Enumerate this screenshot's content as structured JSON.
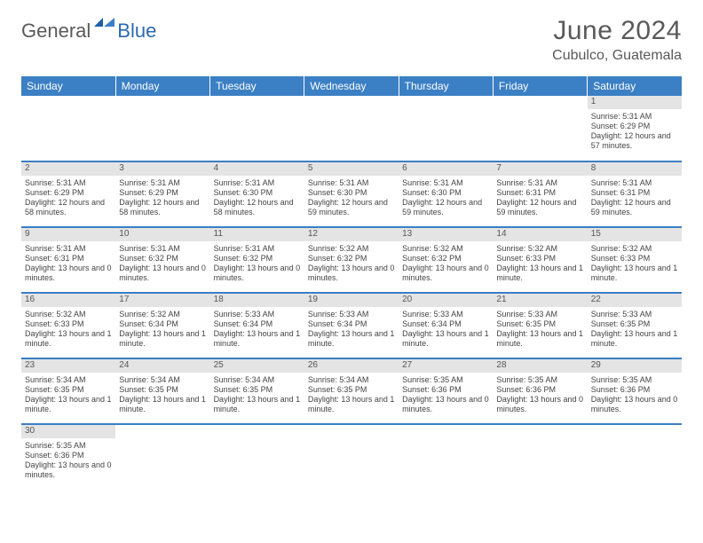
{
  "logo": {
    "text1": "General",
    "text2": "Blue"
  },
  "title": "June 2024",
  "location": "Cubulco, Guatemala",
  "colors": {
    "header_bg": "#3b7fc4",
    "header_text": "#ffffff",
    "daynum_bg": "#e4e4e4",
    "border": "#3b7fc4",
    "title_color": "#595959",
    "body_text": "#444444"
  },
  "weekdays": [
    "Sunday",
    "Monday",
    "Tuesday",
    "Wednesday",
    "Thursday",
    "Friday",
    "Saturday"
  ],
  "weeks": [
    [
      {
        "n": "",
        "lines": []
      },
      {
        "n": "",
        "lines": []
      },
      {
        "n": "",
        "lines": []
      },
      {
        "n": "",
        "lines": []
      },
      {
        "n": "",
        "lines": []
      },
      {
        "n": "",
        "lines": []
      },
      {
        "n": "1",
        "lines": [
          "Sunrise: 5:31 AM",
          "Sunset: 6:29 PM",
          "Daylight: 12 hours and 57 minutes."
        ]
      }
    ],
    [
      {
        "n": "2",
        "lines": [
          "Sunrise: 5:31 AM",
          "Sunset: 6:29 PM",
          "Daylight: 12 hours and 58 minutes."
        ]
      },
      {
        "n": "3",
        "lines": [
          "Sunrise: 5:31 AM",
          "Sunset: 6:29 PM",
          "Daylight: 12 hours and 58 minutes."
        ]
      },
      {
        "n": "4",
        "lines": [
          "Sunrise: 5:31 AM",
          "Sunset: 6:30 PM",
          "Daylight: 12 hours and 58 minutes."
        ]
      },
      {
        "n": "5",
        "lines": [
          "Sunrise: 5:31 AM",
          "Sunset: 6:30 PM",
          "Daylight: 12 hours and 59 minutes."
        ]
      },
      {
        "n": "6",
        "lines": [
          "Sunrise: 5:31 AM",
          "Sunset: 6:30 PM",
          "Daylight: 12 hours and 59 minutes."
        ]
      },
      {
        "n": "7",
        "lines": [
          "Sunrise: 5:31 AM",
          "Sunset: 6:31 PM",
          "Daylight: 12 hours and 59 minutes."
        ]
      },
      {
        "n": "8",
        "lines": [
          "Sunrise: 5:31 AM",
          "Sunset: 6:31 PM",
          "Daylight: 12 hours and 59 minutes."
        ]
      }
    ],
    [
      {
        "n": "9",
        "lines": [
          "Sunrise: 5:31 AM",
          "Sunset: 6:31 PM",
          "Daylight: 13 hours and 0 minutes."
        ]
      },
      {
        "n": "10",
        "lines": [
          "Sunrise: 5:31 AM",
          "Sunset: 6:32 PM",
          "Daylight: 13 hours and 0 minutes."
        ]
      },
      {
        "n": "11",
        "lines": [
          "Sunrise: 5:31 AM",
          "Sunset: 6:32 PM",
          "Daylight: 13 hours and 0 minutes."
        ]
      },
      {
        "n": "12",
        "lines": [
          "Sunrise: 5:32 AM",
          "Sunset: 6:32 PM",
          "Daylight: 13 hours and 0 minutes."
        ]
      },
      {
        "n": "13",
        "lines": [
          "Sunrise: 5:32 AM",
          "Sunset: 6:32 PM",
          "Daylight: 13 hours and 0 minutes."
        ]
      },
      {
        "n": "14",
        "lines": [
          "Sunrise: 5:32 AM",
          "Sunset: 6:33 PM",
          "Daylight: 13 hours and 1 minute."
        ]
      },
      {
        "n": "15",
        "lines": [
          "Sunrise: 5:32 AM",
          "Sunset: 6:33 PM",
          "Daylight: 13 hours and 1 minute."
        ]
      }
    ],
    [
      {
        "n": "16",
        "lines": [
          "Sunrise: 5:32 AM",
          "Sunset: 6:33 PM",
          "Daylight: 13 hours and 1 minute."
        ]
      },
      {
        "n": "17",
        "lines": [
          "Sunrise: 5:32 AM",
          "Sunset: 6:34 PM",
          "Daylight: 13 hours and 1 minute."
        ]
      },
      {
        "n": "18",
        "lines": [
          "Sunrise: 5:33 AM",
          "Sunset: 6:34 PM",
          "Daylight: 13 hours and 1 minute."
        ]
      },
      {
        "n": "19",
        "lines": [
          "Sunrise: 5:33 AM",
          "Sunset: 6:34 PM",
          "Daylight: 13 hours and 1 minute."
        ]
      },
      {
        "n": "20",
        "lines": [
          "Sunrise: 5:33 AM",
          "Sunset: 6:34 PM",
          "Daylight: 13 hours and 1 minute."
        ]
      },
      {
        "n": "21",
        "lines": [
          "Sunrise: 5:33 AM",
          "Sunset: 6:35 PM",
          "Daylight: 13 hours and 1 minute."
        ]
      },
      {
        "n": "22",
        "lines": [
          "Sunrise: 5:33 AM",
          "Sunset: 6:35 PM",
          "Daylight: 13 hours and 1 minute."
        ]
      }
    ],
    [
      {
        "n": "23",
        "lines": [
          "Sunrise: 5:34 AM",
          "Sunset: 6:35 PM",
          "Daylight: 13 hours and 1 minute."
        ]
      },
      {
        "n": "24",
        "lines": [
          "Sunrise: 5:34 AM",
          "Sunset: 6:35 PM",
          "Daylight: 13 hours and 1 minute."
        ]
      },
      {
        "n": "25",
        "lines": [
          "Sunrise: 5:34 AM",
          "Sunset: 6:35 PM",
          "Daylight: 13 hours and 1 minute."
        ]
      },
      {
        "n": "26",
        "lines": [
          "Sunrise: 5:34 AM",
          "Sunset: 6:35 PM",
          "Daylight: 13 hours and 1 minute."
        ]
      },
      {
        "n": "27",
        "lines": [
          "Sunrise: 5:35 AM",
          "Sunset: 6:36 PM",
          "Daylight: 13 hours and 0 minutes."
        ]
      },
      {
        "n": "28",
        "lines": [
          "Sunrise: 5:35 AM",
          "Sunset: 6:36 PM",
          "Daylight: 13 hours and 0 minutes."
        ]
      },
      {
        "n": "29",
        "lines": [
          "Sunrise: 5:35 AM",
          "Sunset: 6:36 PM",
          "Daylight: 13 hours and 0 minutes."
        ]
      }
    ],
    [
      {
        "n": "30",
        "lines": [
          "Sunrise: 5:35 AM",
          "Sunset: 6:36 PM",
          "Daylight: 13 hours and 0 minutes."
        ]
      },
      {
        "n": "",
        "lines": []
      },
      {
        "n": "",
        "lines": []
      },
      {
        "n": "",
        "lines": []
      },
      {
        "n": "",
        "lines": []
      },
      {
        "n": "",
        "lines": []
      },
      {
        "n": "",
        "lines": []
      }
    ]
  ]
}
